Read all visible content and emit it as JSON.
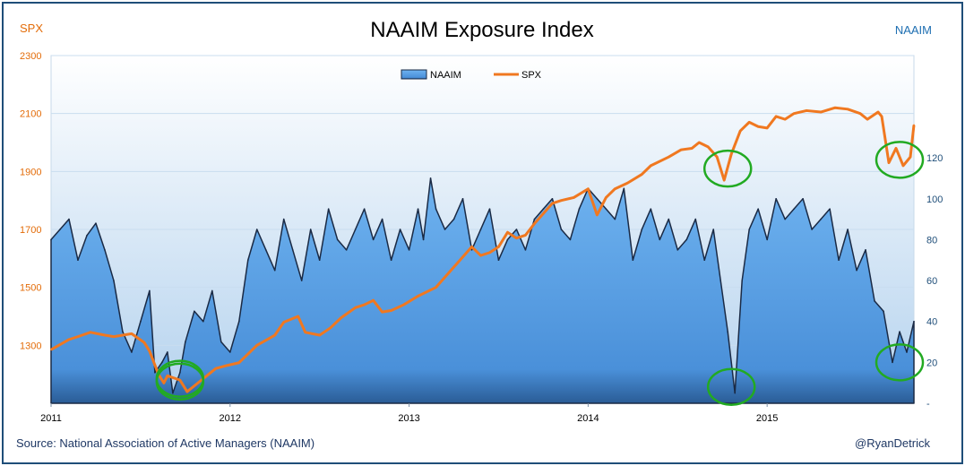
{
  "header": {
    "title": "NAAIM Exposure Index",
    "left_axis_name": "SPX",
    "right_axis_name": "NAAIM"
  },
  "footer": {
    "source": "Source:  National Association of Active Managers (NAAIM)",
    "handle": "@RyanDetrick"
  },
  "colors": {
    "spx": "#f07820",
    "naaim": "#4a90d9",
    "naaim_dark": "#1a2a45",
    "highlight": "#22aa22",
    "plot_top": "#ffffff",
    "plot_bottom": "#b4d2ee"
  },
  "chart_data": {
    "type": "line",
    "title": "NAAIM Exposure Index",
    "legend": {
      "entries": [
        "NAAIM",
        "SPX"
      ],
      "placement": "top-center"
    },
    "x_tick_labels": [
      "2011",
      "2012",
      "2013",
      "2014",
      "2015"
    ],
    "x_range": [
      2011.0,
      2015.82
    ],
    "y_left": {
      "label": "SPX",
      "ticks": [
        "1300",
        "1500",
        "1700",
        "1900",
        "2100",
        "2300"
      ],
      "range": [
        1100,
        2300
      ]
    },
    "y_right": {
      "label": "NAAIM",
      "ticks": [
        "-",
        "20",
        "40",
        "60",
        "80",
        "100",
        "120"
      ],
      "range": [
        0,
        170
      ]
    },
    "series": [
      {
        "name": "SPX",
        "type": "line",
        "x": [
          2011.0,
          2011.1,
          2011.15,
          2011.22,
          2011.3,
          2011.35,
          2011.45,
          2011.52,
          2011.55,
          2011.6,
          2011.63,
          2011.65,
          2011.72,
          2011.76,
          2011.82,
          2011.88,
          2011.92,
          2011.98,
          2012.05,
          2012.15,
          2012.25,
          2012.3,
          2012.38,
          2012.42,
          2012.5,
          2012.56,
          2012.62,
          2012.7,
          2012.75,
          2012.8,
          2012.85,
          2012.9,
          2012.97,
          2013.05,
          2013.15,
          2013.25,
          2013.35,
          2013.4,
          2013.45,
          2013.5,
          2013.55,
          2013.6,
          2013.65,
          2013.7,
          2013.75,
          2013.8,
          2013.85,
          2013.92,
          2014.0,
          2014.05,
          2014.1,
          2014.15,
          2014.22,
          2014.3,
          2014.35,
          2014.45,
          2014.52,
          2014.58,
          2014.62,
          2014.67,
          2014.72,
          2014.76,
          2014.8,
          2014.85,
          2014.9,
          2014.95,
          2015.0,
          2015.05,
          2015.1,
          2015.15,
          2015.22,
          2015.3,
          2015.38,
          2015.45,
          2015.52,
          2015.56,
          2015.62,
          2015.64,
          2015.68,
          2015.72,
          2015.76,
          2015.8,
          2015.82
        ],
        "values": [
          1285,
          1320,
          1330,
          1345,
          1335,
          1330,
          1340,
          1310,
          1280,
          1200,
          1170,
          1195,
          1180,
          1140,
          1170,
          1200,
          1220,
          1230,
          1240,
          1300,
          1335,
          1380,
          1400,
          1345,
          1335,
          1360,
          1395,
          1430,
          1440,
          1455,
          1415,
          1420,
          1440,
          1470,
          1500,
          1570,
          1640,
          1610,
          1620,
          1640,
          1690,
          1670,
          1680,
          1720,
          1755,
          1790,
          1800,
          1810,
          1840,
          1750,
          1810,
          1840,
          1860,
          1890,
          1920,
          1950,
          1975,
          1980,
          2000,
          1985,
          1950,
          1870,
          1960,
          2040,
          2070,
          2055,
          2050,
          2090,
          2080,
          2100,
          2110,
          2105,
          2120,
          2115,
          2100,
          2080,
          2105,
          2090,
          1930,
          1980,
          1920,
          1950,
          2060
        ]
      },
      {
        "name": "NAAIM",
        "type": "area",
        "x": [
          2011.0,
          2011.05,
          2011.1,
          2011.15,
          2011.2,
          2011.25,
          2011.3,
          2011.35,
          2011.4,
          2011.45,
          2011.5,
          2011.55,
          2011.58,
          2011.62,
          2011.65,
          2011.68,
          2011.72,
          2011.75,
          2011.8,
          2011.85,
          2011.9,
          2011.95,
          2012.0,
          2012.05,
          2012.1,
          2012.15,
          2012.2,
          2012.25,
          2012.3,
          2012.35,
          2012.4,
          2012.45,
          2012.5,
          2012.55,
          2012.6,
          2012.65,
          2012.7,
          2012.75,
          2012.8,
          2012.85,
          2012.9,
          2012.95,
          2013.0,
          2013.05,
          2013.08,
          2013.12,
          2013.15,
          2013.2,
          2013.25,
          2013.3,
          2013.35,
          2013.4,
          2013.45,
          2013.5,
          2013.55,
          2013.6,
          2013.65,
          2013.7,
          2013.75,
          2013.8,
          2013.85,
          2013.9,
          2013.95,
          2014.0,
          2014.05,
          2014.1,
          2014.15,
          2014.2,
          2014.25,
          2014.3,
          2014.35,
          2014.4,
          2014.45,
          2014.5,
          2014.55,
          2014.6,
          2014.65,
          2014.7,
          2014.74,
          2014.78,
          2014.82,
          2014.86,
          2014.9,
          2014.95,
          2015.0,
          2015.05,
          2015.1,
          2015.15,
          2015.2,
          2015.25,
          2015.3,
          2015.35,
          2015.4,
          2015.45,
          2015.5,
          2015.55,
          2015.6,
          2015.65,
          2015.7,
          2015.74,
          2015.78,
          2015.82
        ],
        "values": [
          80,
          85,
          90,
          70,
          82,
          88,
          75,
          60,
          35,
          25,
          40,
          55,
          15,
          20,
          25,
          5,
          15,
          30,
          45,
          40,
          55,
          30,
          25,
          40,
          70,
          85,
          75,
          65,
          90,
          75,
          60,
          85,
          70,
          95,
          80,
          75,
          85,
          95,
          80,
          90,
          70,
          85,
          75,
          95,
          80,
          110,
          95,
          85,
          90,
          100,
          75,
          85,
          95,
          70,
          80,
          85,
          75,
          90,
          95,
          100,
          85,
          80,
          95,
          105,
          100,
          95,
          90,
          105,
          70,
          85,
          95,
          80,
          90,
          75,
          80,
          90,
          70,
          85,
          60,
          35,
          5,
          60,
          85,
          95,
          80,
          100,
          90,
          95,
          100,
          85,
          90,
          95,
          70,
          85,
          65,
          75,
          50,
          45,
          20,
          35,
          25,
          40
        ]
      }
    ],
    "annotations": [
      {
        "shape": "circle",
        "series": "SPX",
        "x": 2011.72,
        "value": 1175
      },
      {
        "shape": "circle",
        "series": "NAAIM",
        "x": 2011.72,
        "value": 12
      },
      {
        "shape": "circle",
        "series": "SPX",
        "x": 2014.78,
        "value": 1910
      },
      {
        "shape": "circle",
        "series": "NAAIM",
        "x": 2014.8,
        "value": 8
      },
      {
        "shape": "circle",
        "series": "SPX",
        "x": 2015.74,
        "value": 1940
      },
      {
        "shape": "circle",
        "series": "NAAIM",
        "x": 2015.74,
        "value": 20
      }
    ]
  }
}
